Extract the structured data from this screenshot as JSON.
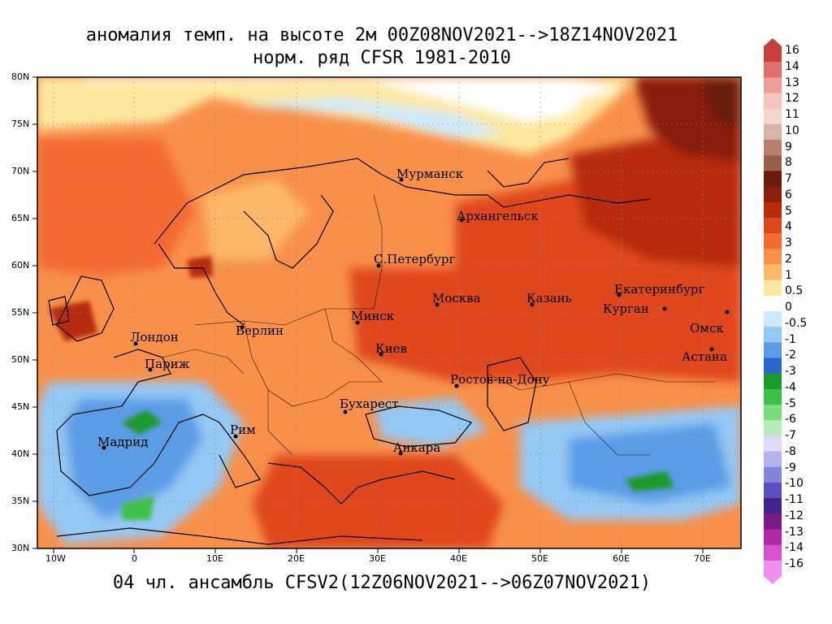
{
  "title_line1": "аномалия темп. на высоте 2м 00Z08NOV2021-->18Z14NOV2021",
  "title_line2": "норм. ряд CFSR 1981-2010",
  "footer": "04 чл. ансамбль CFSV2(12Z06NOV2021-->06Z07NOV2021)",
  "lat_labels": [
    "80N",
    "75N",
    "70N",
    "65N",
    "60N",
    "55N",
    "50N",
    "45N",
    "40N",
    "35N",
    "30N"
  ],
  "lon_labels": [
    "10W",
    "0",
    "10E",
    "20E",
    "30E",
    "40E",
    "50E",
    "60E",
    "70E"
  ],
  "colorbar": {
    "labels": [
      "16",
      "14",
      "13",
      "12",
      "11",
      "10",
      "9",
      "8",
      "7",
      "6",
      "5",
      "4",
      "3",
      "2",
      "1",
      "0.5",
      "0",
      "-0.5",
      "-1",
      "-2",
      "-3",
      "-4",
      "-5",
      "-6",
      "-7",
      "-8",
      "-9",
      "-10",
      "-11",
      "-12",
      "-13",
      "-14",
      "-16"
    ],
    "colors": [
      "#c8403c",
      "#e0706c",
      "#ef9c98",
      "#f6c4c0",
      "#f1d6cc",
      "#d8b4a8",
      "#b88070",
      "#96604c",
      "#6a1c0c",
      "#8a1e0a",
      "#b82c0c",
      "#e0461c",
      "#f46a32",
      "#f8904a",
      "#fcb868",
      "#fde8a0",
      "#ffffff",
      "#cfeafa",
      "#94c8f4",
      "#5a9ce6",
      "#2c64d0",
      "#1a9a2a",
      "#3cc04a",
      "#7cda7c",
      "#b8ecb8",
      "#dcdcf6",
      "#b4b4ec",
      "#8484dc",
      "#5a50c4",
      "#46208c",
      "#7a1a84",
      "#b02aa8",
      "#d850d0",
      "#f090ee"
    ]
  },
  "cities": [
    {
      "name": "Мурманск"
    },
    {
      "name": "Архангельск"
    },
    {
      "name": "С.Петербург"
    },
    {
      "name": "Москва"
    },
    {
      "name": "Казань"
    },
    {
      "name": "Екатеринбург"
    },
    {
      "name": "Курган"
    },
    {
      "name": "Омск"
    },
    {
      "name": "Астана"
    },
    {
      "name": "Минск"
    },
    {
      "name": "Киев"
    },
    {
      "name": "Берлин"
    },
    {
      "name": "Лондон"
    },
    {
      "name": "Париж"
    },
    {
      "name": "Ростов-на-Дону"
    },
    {
      "name": "Бухарест"
    },
    {
      "name": "Рим"
    },
    {
      "name": "Анкара"
    },
    {
      "name": "Мадрид"
    }
  ],
  "map": {
    "type": "temperature anomaly",
    "variable": "2m temperature anomaly",
    "lat_range": [
      "30N",
      "80N"
    ],
    "lon_range": [
      "12W",
      "75E"
    ]
  }
}
